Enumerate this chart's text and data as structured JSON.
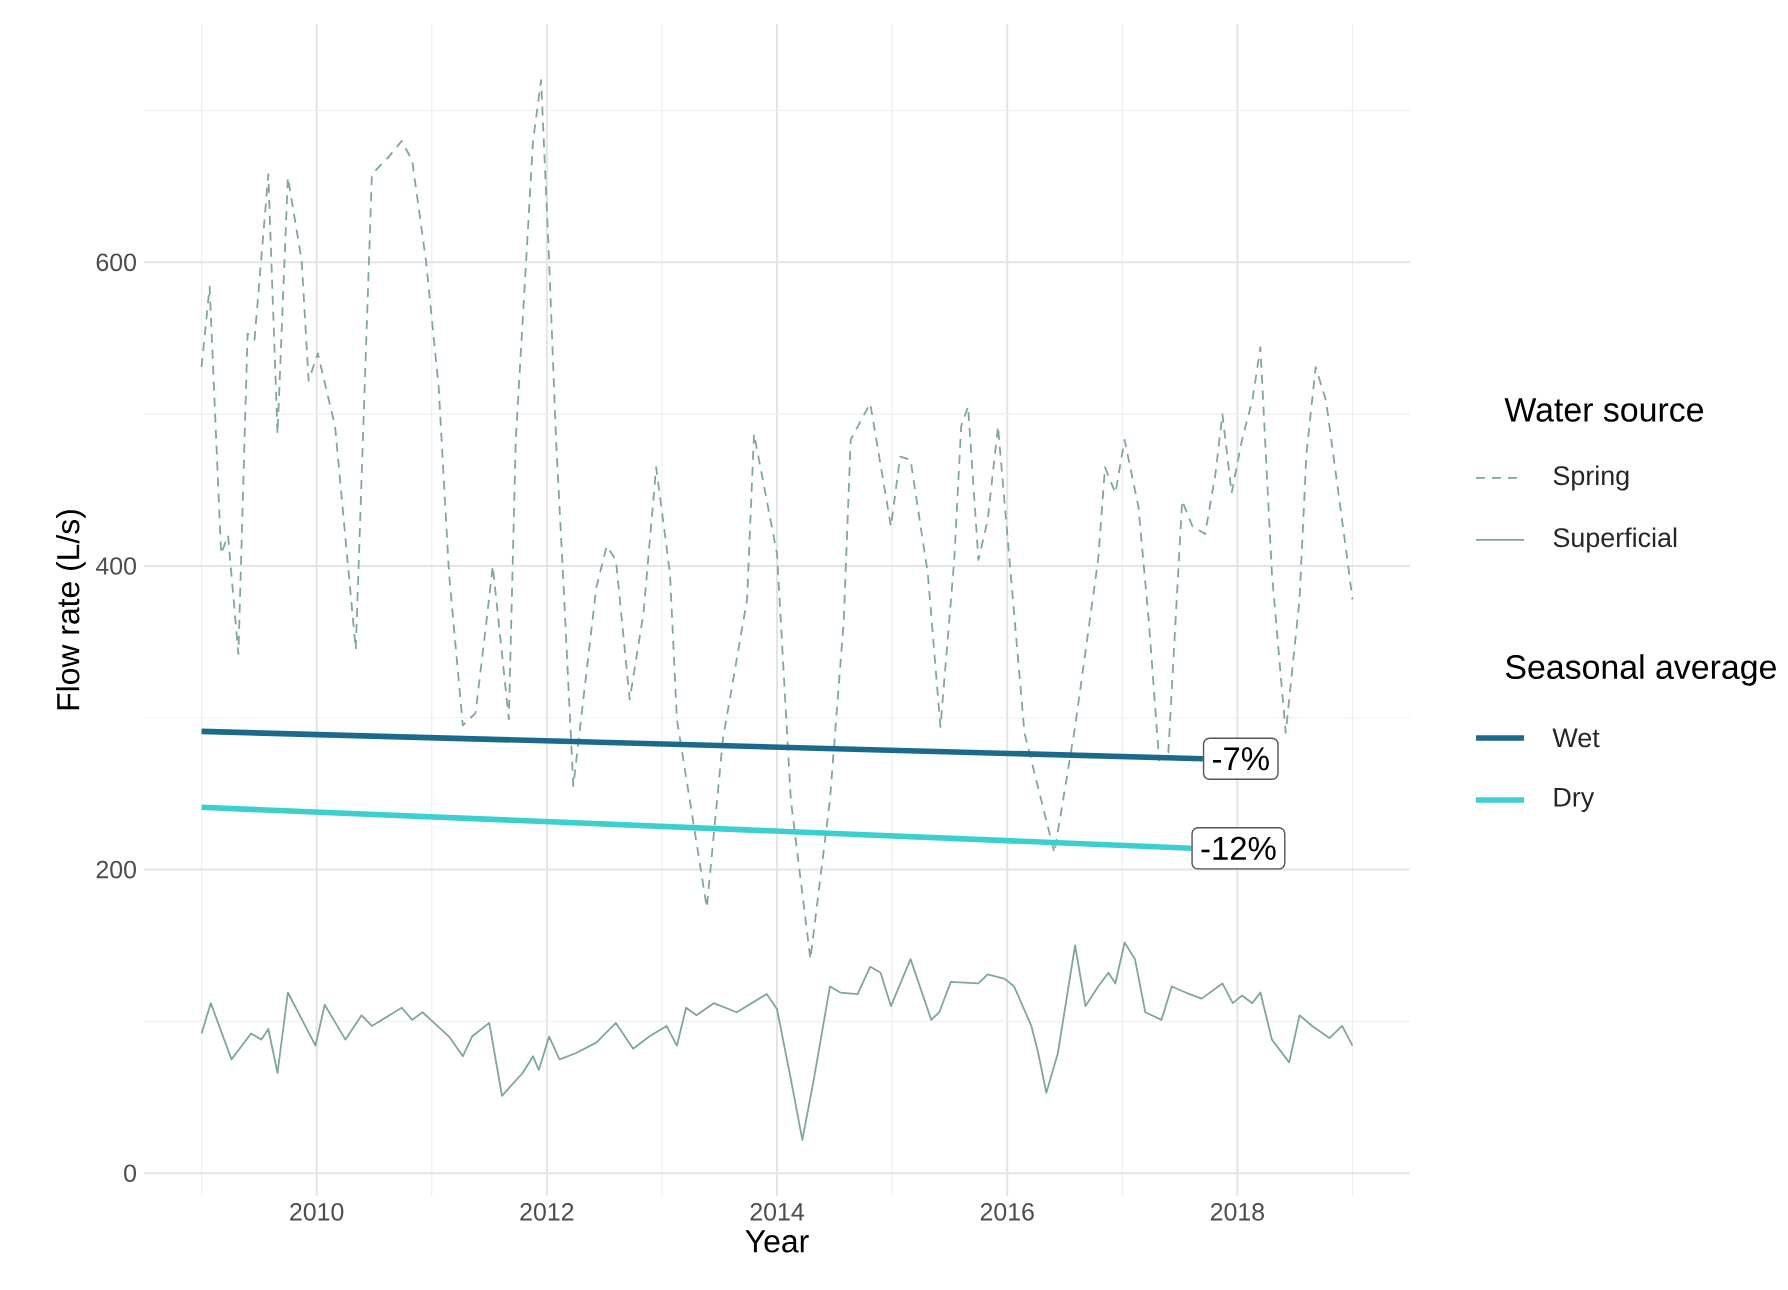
{
  "chart_data": {
    "type": "line",
    "xlabel": "Year",
    "ylabel": "Flow rate (L/s)",
    "legend_title": "Water source",
    "legend": "right",
    "grid": true,
    "xlim": [
      2008.5,
      2019.5
    ],
    "ylim": [
      -15,
      757
    ],
    "xticks": [
      2010,
      2012,
      2014,
      2016,
      2018
    ],
    "yticks": [
      0,
      200,
      400,
      600
    ],
    "series": [
      {
        "name": "Spring",
        "color": "#7fa79b",
        "line_style": "dashed",
        "x": [
          2009.0,
          2009.07,
          2009.17,
          2009.23,
          2009.32,
          2009.4,
          2009.46,
          2009.58,
          2009.66,
          2009.75,
          2009.87,
          2009.93,
          2010.01,
          2010.16,
          2010.34,
          2010.48,
          2010.62,
          2010.74,
          2010.83,
          2010.95,
          2011.06,
          2011.15,
          2011.27,
          2011.38,
          2011.47,
          2011.53,
          2011.67,
          2011.73,
          2011.82,
          2011.88,
          2011.95,
          2012.02,
          2012.08,
          2012.14,
          2012.23,
          2012.43,
          2012.52,
          2012.6,
          2012.72,
          2012.84,
          2012.95,
          2013.07,
          2013.13,
          2013.39,
          2013.53,
          2013.74,
          2013.8,
          2014.0,
          2014.12,
          2014.29,
          2014.46,
          2014.58,
          2014.64,
          2014.73,
          2014.81,
          2014.99,
          2015.07,
          2015.16,
          2015.31,
          2015.42,
          2015.54,
          2015.6,
          2015.66,
          2015.75,
          2015.83,
          2015.92,
          2016.03,
          2016.15,
          2016.41,
          2016.59,
          2016.79,
          2016.85,
          2016.94,
          2017.02,
          2017.14,
          2017.23,
          2017.32,
          2017.4,
          2017.46,
          2017.52,
          2017.61,
          2017.72,
          2017.81,
          2017.87,
          2017.95,
          2018.04,
          2018.13,
          2018.2,
          2018.3,
          2018.42,
          2018.54,
          2018.6,
          2018.68,
          2018.77,
          2018.94,
          2019.0
        ],
        "values": [
          531,
          584,
          408,
          420,
          342,
          553,
          549,
          658,
          487,
          656,
          601,
          522,
          540,
          492,
          345,
          658,
          669,
          680,
          667,
          601,
          518,
          395,
          295,
          303,
          360,
          400,
          299,
          483,
          601,
          680,
          720,
          601,
          483,
          395,
          255,
          386,
          413,
          404,
          312,
          369,
          465,
          395,
          299,
          175,
          286,
          378,
          487,
          408,
          246,
          141,
          246,
          364,
          483,
          496,
          507,
          426,
          472,
          470,
          395,
          294,
          404,
          492,
          505,
          404,
          430,
          492,
          395,
          290,
          211,
          294,
          404,
          465,
          448,
          483,
          439,
          364,
          272,
          277,
          360,
          443,
          426,
          421,
          461,
          500,
          448,
          483,
          509,
          544,
          395,
          290,
          378,
          474,
          531,
          509,
          413,
          378
        ]
      },
      {
        "name": "Superficial",
        "color": "#7fa79b",
        "line_style": "solid",
        "x": [
          2009.0,
          2009.08,
          2009.26,
          2009.43,
          2009.52,
          2009.58,
          2009.66,
          2009.75,
          2009.99,
          2010.07,
          2010.25,
          2010.39,
          2010.48,
          2010.74,
          2010.83,
          2010.92,
          2011.15,
          2011.27,
          2011.35,
          2011.5,
          2011.61,
          2011.79,
          2011.88,
          2011.93,
          2012.02,
          2012.11,
          2012.25,
          2012.43,
          2012.6,
          2012.75,
          2012.89,
          2013.04,
          2013.13,
          2013.21,
          2013.3,
          2013.45,
          2013.65,
          2013.91,
          2014.0,
          2014.12,
          2014.22,
          2014.32,
          2014.46,
          2014.55,
          2014.7,
          2014.81,
          2014.9,
          2014.99,
          2015.16,
          2015.34,
          2015.41,
          2015.51,
          2015.75,
          2015.83,
          2015.98,
          2016.06,
          2016.21,
          2016.27,
          2016.34,
          2016.44,
          2016.59,
          2016.68,
          2016.79,
          2016.88,
          2016.94,
          2017.02,
          2017.11,
          2017.2,
          2017.34,
          2017.43,
          2017.55,
          2017.69,
          2017.87,
          2017.96,
          2018.04,
          2018.13,
          2018.2,
          2018.3,
          2018.45,
          2018.54,
          2018.65,
          2018.8,
          2018.91,
          2019.0
        ],
        "values": [
          92,
          112,
          75,
          92,
          88,
          95,
          66,
          119,
          84,
          111,
          88,
          104,
          97,
          109,
          101,
          106,
          90,
          77,
          90,
          99,
          51,
          66,
          77,
          68,
          90,
          75,
          79,
          86,
          99,
          82,
          90,
          97,
          84,
          109,
          104,
          112,
          106,
          118,
          108,
          62,
          22,
          62,
          123,
          119,
          118,
          136,
          132,
          110,
          141,
          101,
          106,
          126,
          125,
          131,
          128,
          123,
          97,
          79,
          53,
          79,
          150,
          110,
          123,
          132,
          125,
          152,
          141,
          106,
          101,
          123,
          119,
          115,
          125,
          112,
          117,
          112,
          119,
          88,
          73,
          104,
          97,
          89,
          97,
          84
        ]
      },
      {
        "name": "Wet",
        "color": "#1b6a8c",
        "x": [
          2009.0,
          2017.7
        ],
        "values": [
          291,
          273
        ]
      },
      {
        "name": "Dry",
        "color": "#3ccfcf",
        "x": [
          2009.0,
          2017.6
        ],
        "values": [
          241,
          214
        ]
      }
    ],
    "annotations": [
      {
        "text": "-7%",
        "x": 2017.7,
        "y": 273
      },
      {
        "text": "-12%",
        "x": 2017.6,
        "y": 214
      },
      "Seasonal average"
    ]
  }
}
